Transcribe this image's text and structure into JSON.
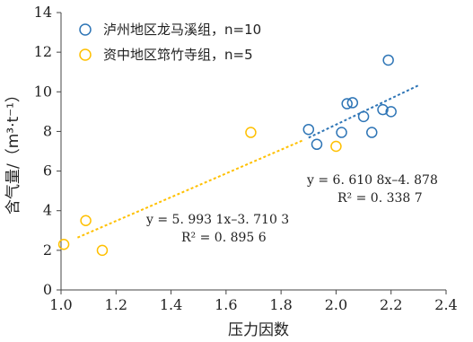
{
  "chart_data": {
    "type": "scatter",
    "xlabel": "压力因数",
    "ylabel": "含气量/（m³·t⁻¹）",
    "xlim": [
      1.0,
      2.4
    ],
    "ylim": [
      0,
      14
    ],
    "xticks": [
      "1.0",
      "1.2",
      "1.4",
      "1.6",
      "1.8",
      "2.0",
      "2.2",
      "2.4"
    ],
    "yticks": [
      "0",
      "2",
      "4",
      "6",
      "8",
      "10",
      "12",
      "14"
    ],
    "grid": false,
    "legend_position": "top-left",
    "series": [
      {
        "name": "泸州地区龙马溪组，n=10",
        "color": "#2e75b6",
        "points": [
          {
            "x": 1.9,
            "y": 8.1
          },
          {
            "x": 1.93,
            "y": 7.35
          },
          {
            "x": 2.02,
            "y": 7.95
          },
          {
            "x": 2.04,
            "y": 9.4
          },
          {
            "x": 2.06,
            "y": 9.45
          },
          {
            "x": 2.1,
            "y": 8.75
          },
          {
            "x": 2.13,
            "y": 7.95
          },
          {
            "x": 2.17,
            "y": 9.1
          },
          {
            "x": 2.19,
            "y": 11.6
          },
          {
            "x": 2.2,
            "y": 9.0
          }
        ],
        "trendline": {
          "slope": 6.6108,
          "intercept": -4.878,
          "x_range": [
            1.9,
            2.3
          ],
          "equation_text": "y = 6. 610 8x–4. 878",
          "r2_text": "R² = 0. 338 7"
        }
      },
      {
        "name": "资中地区筇竹寺组，n=5",
        "color": "#ffc000",
        "points": [
          {
            "x": 1.01,
            "y": 2.3
          },
          {
            "x": 1.09,
            "y": 3.5
          },
          {
            "x": 1.15,
            "y": 2.0
          },
          {
            "x": 1.69,
            "y": 7.95
          },
          {
            "x": 2.0,
            "y": 7.25
          }
        ],
        "trendline": {
          "slope": 5.9931,
          "intercept": -3.7103,
          "x_range": [
            1.06,
            1.88
          ],
          "equation_text": "y = 5. 993 1x–3. 710 3",
          "r2_text": "R² = 0. 895 6"
        }
      }
    ]
  }
}
